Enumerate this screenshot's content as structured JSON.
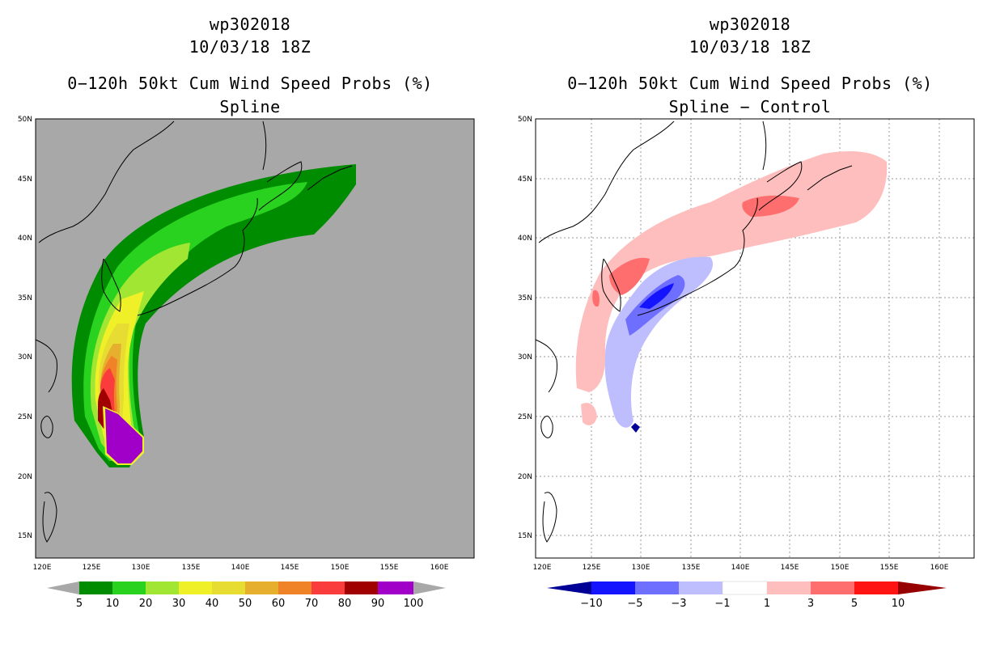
{
  "left": {
    "storm_id": "wp302018",
    "datetime": "10/03/18 18Z",
    "product": "0−120h 50kt Cum Wind Speed Probs (%)",
    "subtitle": "Spline",
    "lat_labels": [
      "50N",
      "45N",
      "40N",
      "35N",
      "30N",
      "25N",
      "20N",
      "15N"
    ],
    "lon_labels": [
      "120E",
      "125E",
      "130E",
      "135E",
      "140E",
      "145E",
      "150E",
      "155E",
      "160E"
    ],
    "colorbar_labels": [
      "5",
      "10",
      "20",
      "30",
      "40",
      "50",
      "60",
      "70",
      "80",
      "90",
      "100"
    ],
    "colorbar_colors": [
      "#008c00",
      "#28d21e",
      "#a0e632",
      "#f0f028",
      "#e6dc32",
      "#e6af2d",
      "#f08228",
      "#fa3c3c",
      "#a00000",
      "#a000c8"
    ],
    "background_color": "#a8a8a8"
  },
  "right": {
    "storm_id": "wp302018",
    "datetime": "10/03/18 18Z",
    "product": "0−120h 50kt Cum Wind Speed Probs (%)",
    "subtitle": "Spline − Control",
    "lat_labels": [
      "50N",
      "45N",
      "40N",
      "35N",
      "30N",
      "25N",
      "20N",
      "15N"
    ],
    "lon_labels": [
      "120E",
      "125E",
      "130E",
      "135E",
      "140E",
      "145E",
      "150E",
      "155E",
      "160E"
    ],
    "colorbar_labels": [
      "−10",
      "−5",
      "−3",
      "−1",
      "1",
      "3",
      "5",
      "10"
    ],
    "colorbar_colors": [
      "#000096",
      "#1414ff",
      "#6e6eff",
      "#bebeff",
      "#ffffff",
      "#ffbebe",
      "#ff6e6e",
      "#ff1414",
      "#960000"
    ]
  }
}
